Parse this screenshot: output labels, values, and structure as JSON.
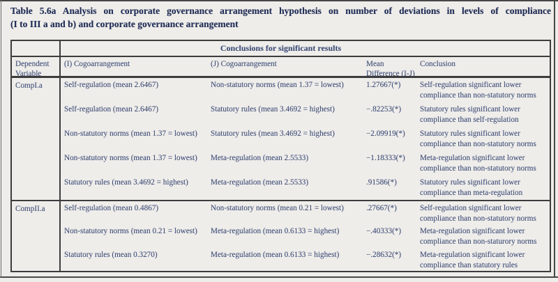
{
  "title": {
    "line1": "Table 5.6a Analysis on corporate governance arrangement hypothesis on number of deviations in levels of compliance",
    "line2": "(I to III a and b) and corporate governance arrangement",
    "full": "Table 5.6a Analysis on corporate governance arrangement hypothesis on number of deviations in levels of compliance (I to III a and b) and corporate governance arrangement"
  },
  "table": {
    "banner": "Conclusions for significant results",
    "columns": {
      "dependent": "Dependent Variable",
      "i": "(I) Cogoarrangement",
      "j": "(J) Cogoarrangement",
      "mean_line1": "Mean",
      "mean_line2": "Difference (I-J)",
      "conclusion": "Conclusion"
    },
    "groups": [
      {
        "dependent_variable": "CompI.a",
        "rows": [
          {
            "i": "Self-regulation (mean 2.6467)",
            "j": "Non-statutory norms (mean 1.37 = lowest)",
            "diff": "1.27667(*)",
            "conclusion": "Self-regulation significant lower compliance than non-statutory norms"
          },
          {
            "i": "Self-regulation (mean 2.6467)",
            "j": "Statutory rules (mean 3.4692 = highest)",
            "diff": "−.82253(*)",
            "conclusion": "Statutory rules significant lower compliance than self-regulation"
          },
          {
            "i": "Non-statutory norms (mean 1.37 = lowest)",
            "j": "Statutory rules (mean 3.4692 = highest)",
            "diff": "−2.09919(*)",
            "conclusion": "Statutory rules significant lower compliance than non-statutory norms"
          },
          {
            "i": "Non-statutory norms (mean 1.37 = lowest)",
            "j": "Meta-regulation (mean 2.5533)",
            "diff": "−1.18333(*)",
            "conclusion": "Meta-regulation significant lower compliance than non-statutory norms"
          },
          {
            "i": "Statutory rules (mean 3.4692 = highest)",
            "j": "Meta-regulation (mean 2.5533)",
            "diff": ".91586(*)",
            "conclusion": "Statutory rules significant lower compliance than meta-regulation"
          }
        ]
      },
      {
        "dependent_variable": "CompII.a",
        "rows": [
          {
            "i": "Self-regulation (mean 0.4867)",
            "j": "Non-statutory norms (mean 0.21 = lowest)",
            "diff": ".27667(*)",
            "conclusion": "Self-regulation significant lower compliance than non-statutory norms"
          },
          {
            "i": "Non-statutory norms (mean 0.21 = lowest)",
            "j": "Meta-regulation (mean 0.6133 = highest)",
            "diff": "−.40333(*)",
            "conclusion": "Meta-regulation significant lower compliance than non-staturory norms"
          },
          {
            "i": "Statutory rules (mean 0.3270)",
            "j": "Meta-regulation (mean 0.6133 = highest)",
            "diff": "−.28632(*)",
            "conclusion": "Meta-regulation significant lower compliance than statutory rules"
          }
        ]
      }
    ]
  },
  "colors": {
    "background": "#efedea",
    "body_text": "#3d4d77",
    "title_text": "#202e56",
    "border": "#3c3c3c"
  }
}
